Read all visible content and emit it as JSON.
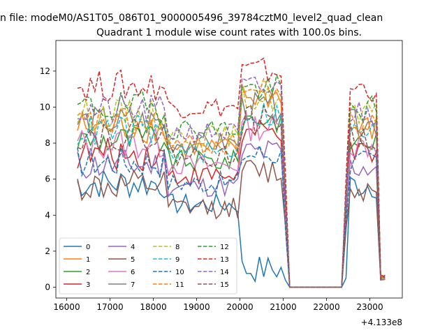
{
  "suptitle": "n file: modeM0/AS1T05_086T01_9000005496_39784cztM0_level2_quad_clean",
  "chart_data": {
    "type": "line",
    "title": "Quadrant 1 module wise count rates with 100.0s bins.",
    "xlabel": "",
    "ylabel": "",
    "x_offset_label": "+4.133e8",
    "xlim": [
      15750,
      23750
    ],
    "ylim": [
      -0.6,
      13.7
    ],
    "xticks": [
      16000,
      17000,
      18000,
      19000,
      20000,
      21000,
      22000,
      23000
    ],
    "yticks": [
      0,
      2,
      4,
      6,
      8,
      10,
      12
    ],
    "grid": false,
    "legend_position": "lower-left",
    "bin_width_s": 100,
    "x_start": 16250,
    "x_end": 23350,
    "x_unit_note": "",
    "gaps": [
      [
        21150,
        22350
      ]
    ],
    "series": [
      {
        "name": "0",
        "color": "#1f77b4",
        "style": "solid",
        "base": 5.6,
        "spike": 1.0
      },
      {
        "name": "1",
        "color": "#ff7f0e",
        "style": "solid",
        "base": 8.7,
        "spike": 10.6
      },
      {
        "name": "2",
        "color": "#2ca02c",
        "style": "solid",
        "base": 8.0,
        "spike": 9.4
      },
      {
        "name": "3",
        "color": "#d62728",
        "style": "solid",
        "base": 7.2,
        "spike": 8.5
      },
      {
        "name": "4",
        "color": "#9467bd",
        "style": "solid",
        "base": 6.6,
        "spike": 7.5
      },
      {
        "name": "5",
        "color": "#8c564b",
        "style": "solid",
        "base": 5.4,
        "spike": 6.4
      },
      {
        "name": "6",
        "color": "#e377c2",
        "style": "solid",
        "base": 7.8,
        "spike": 8.9
      },
      {
        "name": "7",
        "color": "#7f7f7f",
        "style": "solid",
        "base": 9.0,
        "spike": 10.0
      },
      {
        "name": "8",
        "color": "#bcbd22",
        "style": "dashed",
        "base": 9.4,
        "spike": 10.5
      },
      {
        "name": "9",
        "color": "#17becf",
        "style": "dashed",
        "base": 8.5,
        "spike": 9.6
      },
      {
        "name": "10",
        "color": "#1f77b4",
        "style": "dashed",
        "base": 6.8,
        "spike": 7.4
      },
      {
        "name": "11",
        "color": "#ff7f0e",
        "style": "dashed",
        "base": 8.9,
        "spike": 10.9
      },
      {
        "name": "12",
        "color": "#2ca02c",
        "style": "dashed",
        "base": 9.8,
        "spike": 11.0
      },
      {
        "name": "13",
        "color": "#d62728",
        "style": "dashed",
        "base": 11.0,
        "spike": 12.0
      },
      {
        "name": "14",
        "color": "#9467bd",
        "style": "dashed",
        "base": 9.6,
        "spike": 11.0
      },
      {
        "name": "15",
        "color": "#8c564b",
        "style": "dashed",
        "base": 8.3,
        "spike": 9.3
      }
    ]
  }
}
